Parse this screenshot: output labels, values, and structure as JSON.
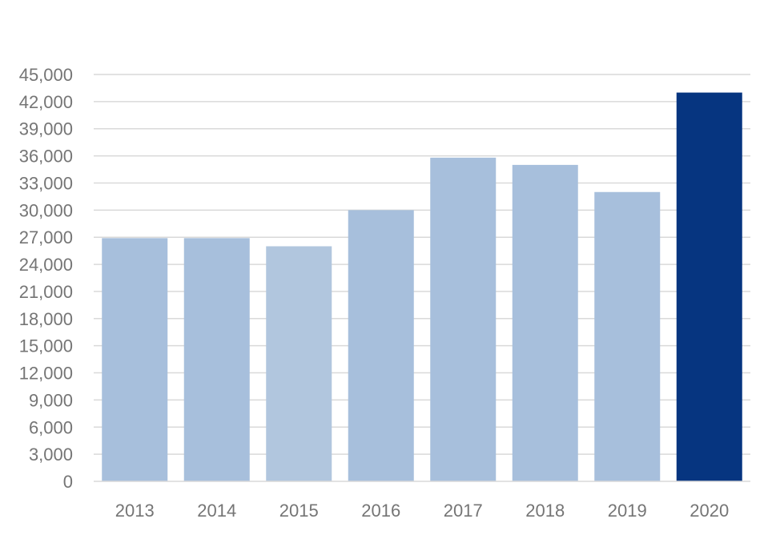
{
  "chart_data": {
    "type": "bar",
    "title": "",
    "xlabel": "",
    "ylabel": "",
    "categories": [
      "2013",
      "2014",
      "2015",
      "2016",
      "2017",
      "2018",
      "2019",
      "2020"
    ],
    "values": [
      26900,
      26900,
      26000,
      30000,
      35800,
      35000,
      32000,
      43000
    ],
    "ylim": [
      0,
      45000
    ],
    "y_ticks": [
      0,
      3000,
      6000,
      9000,
      12000,
      15000,
      18000,
      21000,
      24000,
      27000,
      30000,
      33000,
      36000,
      39000,
      42000,
      45000
    ],
    "y_tick_labels": [
      "0",
      "3,000",
      "6,000",
      "9,000",
      "12,000",
      "15,000",
      "18,000",
      "21,000",
      "24,000",
      "27,000",
      "30,000",
      "33,000",
      "36,000",
      "39,000",
      "42,000",
      "45,000"
    ],
    "grid": true,
    "legend": "none",
    "colors": {
      "default_bar": "#a7bfdc",
      "bar_2015": "#b1c6de",
      "highlight_bar": "#063580",
      "grid": "#d9d9d9",
      "tick_text": "#757575"
    },
    "highlight_category": "2020"
  }
}
